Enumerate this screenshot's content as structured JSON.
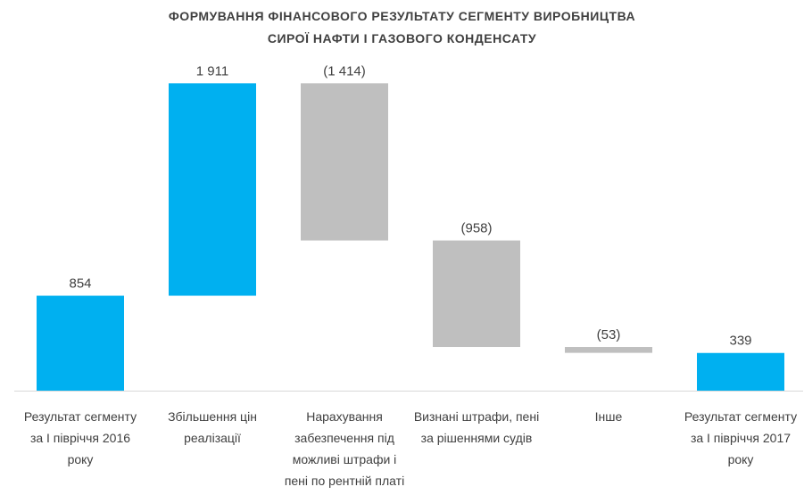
{
  "chart_data": {
    "type": "waterfall",
    "title": [
      "ФОРМУВАННЯ  ФІНАНСОВОГО РЕЗУЛЬТАТУ СЕГМЕНТУ ВИРОБНИЦТВА",
      "СИРОЇ НАФТИ І ГАЗОВОГО КОНДЕНСАТУ"
    ],
    "categories": [
      "Результат сегменту за І півріччя 2016 року",
      "Збільшення цін реалізації",
      "Нарахування забезпечення під можливі штрафи і пені по рентній платі",
      "Визнані штрафи, пені за рішеннями судів",
      "Інше",
      "Результат сегменту за І півріччя 2017 року"
    ],
    "values": [
      854,
      1911,
      -1414,
      -958,
      -53,
      339
    ],
    "value_labels": [
      "854",
      "1 911",
      "(1 414)",
      "(958)",
      "(53)",
      "339"
    ],
    "measure": [
      "total",
      "relative",
      "relative",
      "relative",
      "relative",
      "total"
    ],
    "colors": [
      "#00b0f0",
      "#00b0f0",
      "#bfbfbf",
      "#bfbfbf",
      "#bfbfbf",
      "#00b0f0"
    ],
    "ylim": [
      0,
      2800
    ]
  }
}
